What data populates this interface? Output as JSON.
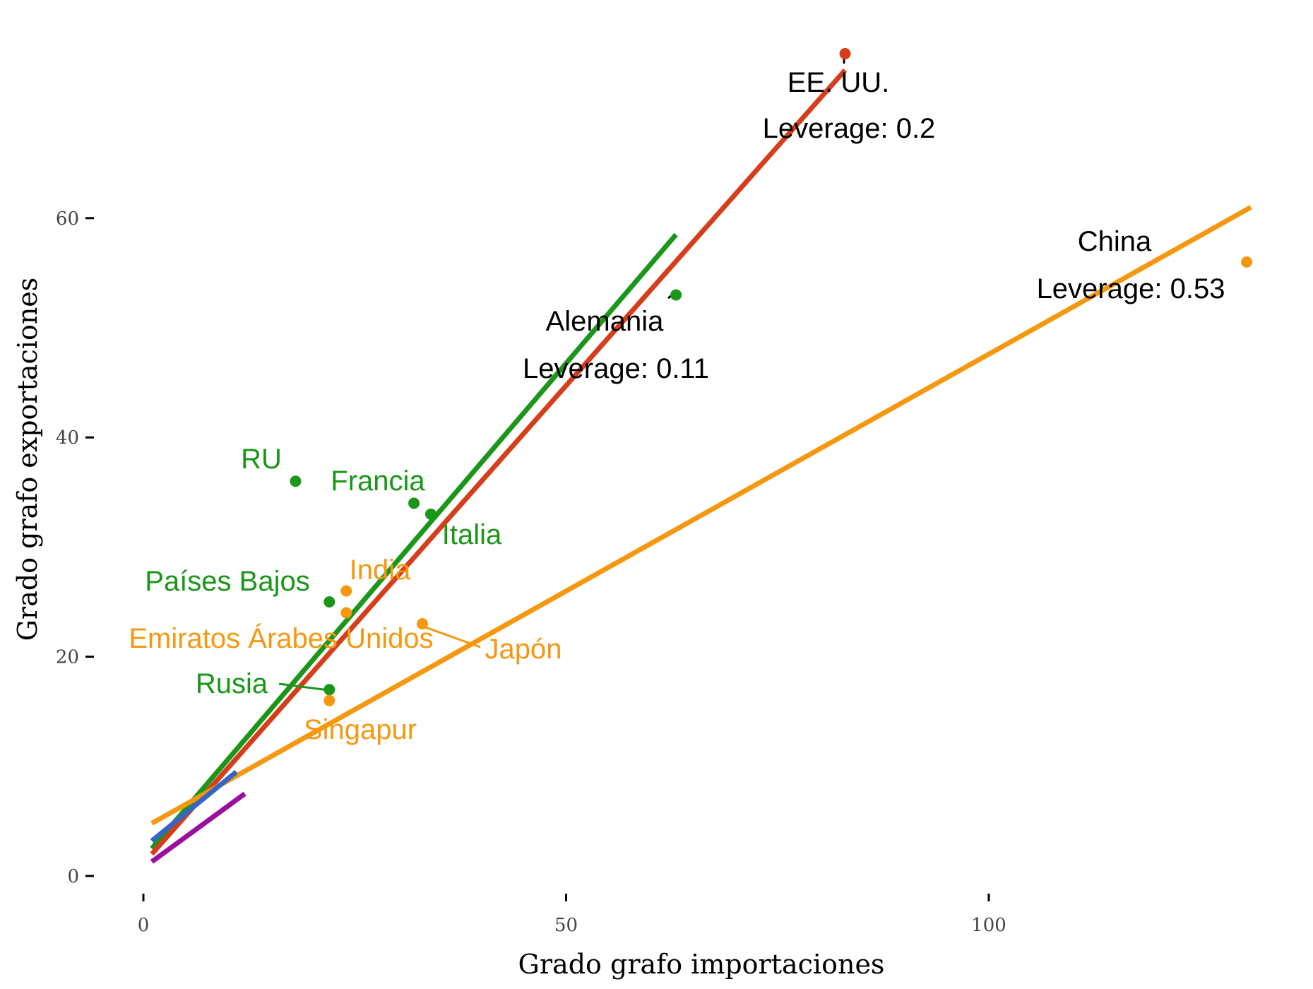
{
  "chart_data": {
    "type": "scatter",
    "xlabel": "Grado grafo importaciones",
    "ylabel": "Grado grafo exportaciones",
    "xlim": [
      -1,
      131
    ],
    "ylim": [
      -2,
      75
    ],
    "x_ticks": [
      0,
      50,
      100
    ],
    "y_ticks": [
      0,
      20,
      40,
      60
    ],
    "grid": false,
    "legend": "none",
    "colors": {
      "green": "#1a9618",
      "orange": "#f5980f",
      "red": "#d63e1b",
      "blue": "#3566c4",
      "purple": "#9a0f9e",
      "black": "#000000"
    },
    "points": [
      {
        "label": "EE. UU.",
        "x": 83,
        "y": 75,
        "color": "red"
      },
      {
        "label": "China",
        "x": 130.5,
        "y": 56,
        "color": "orange"
      },
      {
        "label": "Alemania",
        "x": 63,
        "y": 53,
        "color": "green"
      },
      {
        "label": "RU",
        "x": 18,
        "y": 36,
        "color": "green"
      },
      {
        "label": "Francia",
        "x": 32,
        "y": 34,
        "color": "green"
      },
      {
        "label": "Italia",
        "x": 34,
        "y": 33,
        "color": "green"
      },
      {
        "label": "India",
        "x": 24,
        "y": 26,
        "color": "orange"
      },
      {
        "label": "Países Bajos",
        "x": 22,
        "y": 25,
        "color": "green"
      },
      {
        "label": "Emiratos Árabes Unidos",
        "x": 24,
        "y": 24,
        "color": "orange"
      },
      {
        "label": "Japón",
        "x": 33,
        "y": 23,
        "color": "orange"
      },
      {
        "label": "Rusia",
        "x": 22,
        "y": 17,
        "color": "green"
      },
      {
        "label": "Singapur",
        "x": 22,
        "y": 16,
        "color": "orange"
      }
    ],
    "annotations": [
      {
        "text": "Leverage: 0.2",
        "ref": "EE. UU."
      },
      {
        "text": "Leverage: 0.53",
        "ref": "China"
      },
      {
        "text": "Leverage: 0.11",
        "ref": "Alemania"
      }
    ],
    "fit_lines": [
      {
        "color": "green",
        "x": [
          1,
          63
        ],
        "y": [
          2.5,
          58.5
        ]
      },
      {
        "color": "red",
        "x": [
          1,
          83
        ],
        "y": [
          2,
          73.5
        ]
      },
      {
        "color": "orange",
        "x": [
          1,
          131
        ],
        "y": [
          4.8,
          61
        ]
      },
      {
        "color": "blue",
        "x": [
          1,
          11
        ],
        "y": [
          3.2,
          9.5
        ]
      },
      {
        "color": "purple",
        "x": [
          1,
          12
        ],
        "y": [
          1.3,
          7.5
        ]
      }
    ]
  }
}
